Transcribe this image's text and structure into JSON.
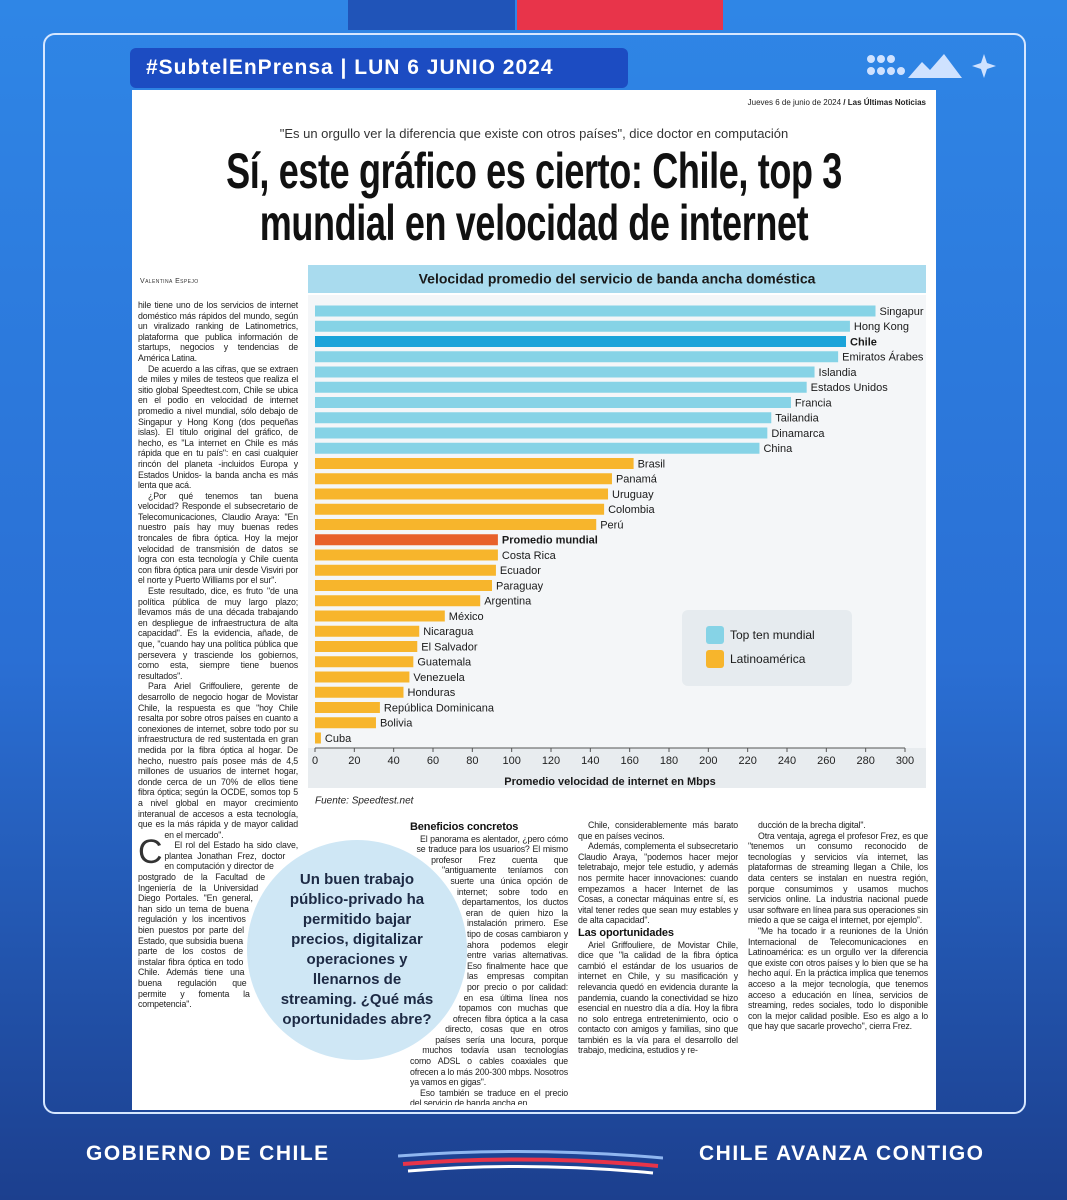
{
  "header": {
    "tag": "#SubtelEnPrensa | LUN 6 JUNIO 2024"
  },
  "newspaper": {
    "dateline": "Jueves 6 de junio de 2024",
    "publication": "/ Las Últimas Noticias",
    "kicker": "\"Es un orgullo ver la diferencia que existe con otros países\", dice doctor en computación",
    "headline": [
      "Sí, este gráfico es cierto: Chile, top 3",
      "mundial en velocidad de internet"
    ],
    "byline": "Valentina Espejo",
    "callout": "Un buen trabajo público-privado ha permitido bajar precios, digitalizar operaciones y llenarnos de streaming. ¿Qué más oportunidades abre?",
    "columns": [
      [
        {
          "p": "Chile tiene uno de los servicios de internet doméstico más rápidos del mundo, según un viralizado ranking de Latinometrics, plataforma que publica información de startups, negocios y tendencias de América Latina."
        },
        {
          "p": "De acuerdo a las cifras, que se extraen de miles y miles de testeos que realiza el sitio global Speedtest.com, Chile se ubica en el podio en velocidad de internet promedio a nivel mundial, sólo debajo de Singapur y Hong Kong (dos pequeñas islas). El título original del gráfico, de hecho, es \"La internet en Chile es más rápida que en tu país\": en casi cualquier rincón del planeta -incluidos Europa y Estados Unidos- la banda ancha es más lenta que acá."
        },
        {
          "p": "¿Por qué tenemos tan buena velocidad? Responde el subsecretario de Telecomunicaciones, Claudio Araya: \"En nuestro país hay muy buenas redes troncales de fibra óptica. Hoy la mejor velocidad de transmisión de datos se logra con esta tecnología y Chile cuenta con fibra óptica para unir desde Visviri por el norte y Puerto Williams por el sur\"."
        },
        {
          "p": "Este resultado, dice, es fruto \"de una política pública de muy largo plazo; llevamos más de una década trabajando en despliegue de infraestructura de alta capacidad\". Es la evidencia, añade, de que, \"cuando hay una política pública que persevera y trasciende los gobiernos, como esta, siempre tiene buenos resultados\"."
        },
        {
          "p": "Para Ariel Griffouliere, gerente de desarrollo de negocio hogar de Movistar Chile, la respuesta es que \"hoy Chile resalta por sobre otros países en cuanto a conexiones de internet, sobre todo por su infraestructura de red sustentada en gran medida por la fibra óptica al hogar. De hecho, nuestro país posee más de 4,5 millones de usuarios de internet hogar, donde cerca de un 70% de ellos tiene fibra óptica; según la OCDE, somos top 5 a nivel global en mayor crecimiento interanual de accesos a esta tecnología, que es la más rápida y de mayor calidad en el mercado\"."
        },
        {
          "p": "El rol del Estado ha sido clave, plantea Jonathan Frez, doctor en computación y director de postgrado de la Facultad de Ingeniería de la Universidad Diego Portales. \"En general, han sido un tema de buena regulación y los incentivos bien puestos por parte del Estado, que subsidia buena parte de los costos de instalar fibra óptica en todo Chile. Además tiene una buena regulación que permite y fomenta la competencia\"."
        }
      ],
      [
        {
          "h": "Beneficios concretos"
        },
        {
          "p": "El panorama es alentador, ¿pero cómo se traduce para los usuarios? El mismo profesor Frez cuenta que \"antiguamente teníamos con suerte una única opción de internet; sobre todo en departamentos, los ductos eran de quien hizo la instalación primero. Ese tipo de cosas cambiaron y ahora podemos elegir entre varias alternativas. Eso finalmente hace que las empresas compitan por precio o por calidad: en esa última línea nos topamos con muchas que ofrecen fibra óptica a la casa directo, cosas que en otros países sería una locura, porque muchos todavía usan tecnologías como ADSL o cables coaxiales que ofrecen a lo más 200-300 mbps. Nosotros ya vamos en gigas\"."
        },
        {
          "p": "Eso también se traduce en el precio del servicio de banda ancha en"
        }
      ],
      [
        {
          "p": "Chile, considerablemente más barato que en países vecinos."
        },
        {
          "p": "Además, complementa el subsecretario Claudio Araya, \"podemos hacer mejor teletrabajo, mejor tele estudio, y además nos permite hacer innovaciones: cuando empezamos a hacer Internet de las Cosas, a conectar máquinas entre sí, es vital tener redes que sean muy estables y de alta capacidad\"."
        },
        {
          "h": "Las oportunidades"
        },
        {
          "p": "Ariel Griffouliere, de Movistar Chile, dice que \"la calidad de la fibra óptica cambió el estándar de los usuarios de internet en Chile, y su masificación y relevancia quedó en evidencia durante la pandemia, cuando la conectividad se hizo esencial en nuestro día a día. Hoy la fibra no solo entrega entretenimiento, ocio o contacto con amigos y familias, sino que también es la vía para el desarrollo del trabajo, medicina, estudios y re-"
        }
      ],
      [
        {
          "p": "ducción de la brecha digital\"."
        },
        {
          "p": "Otra ventaja, agrega el profesor Frez, es que \"tenemos un consumo reconocido de tecnologías y servicios vía internet, las plataformas de streaming llegan a Chile, los data centers se instalan en nuestra región, porque consumimos y usamos muchos servicios online. La industria nacional puede usar software en línea para sus operaciones sin miedo a que se caiga el internet, por ejemplo\"."
        },
        {
          "p": "\"Me ha tocado ir a reuniones de la Unión Internacional de Telecomunicaciones en Latinoamérica: es un orgullo ver la diferencia que existe con otros países y lo bien que se ha hecho aquí. En la práctica implica que tenemos acceso a la mejor tecnología, que tenemos acceso a educación en línea, servicios de streaming, redes sociales, todo lo disponible con la mejor calidad posible. Eso es algo a lo que hay que sacarle provecho\", cierra Frez."
        }
      ]
    ]
  },
  "chart_data": {
    "type": "bar",
    "orientation": "horizontal",
    "title": "Velocidad promedio del servicio de banda ancha doméstica",
    "xlabel": "Promedio velocidad de internet en Mbps",
    "source": "Fuente: Speedtest.net",
    "categories": [
      "Singapur",
      "Hong Kong",
      "Chile",
      "Emiratos Árabes U.",
      "Islandia",
      "Estados Unidos",
      "Francia",
      "Tailandia",
      "Dinamarca",
      "China",
      "Brasil",
      "Panamá",
      "Uruguay",
      "Colombia",
      "Perú",
      "Promedio mundial",
      "Costa Rica",
      "Ecuador",
      "Paraguay",
      "Argentina",
      "México",
      "Nicaragua",
      "El Salvador",
      "Guatemala",
      "Venezuela",
      "Honduras",
      "República Dominicana",
      "Bolivia",
      "Cuba"
    ],
    "values": [
      285,
      272,
      270,
      266,
      254,
      250,
      242,
      232,
      230,
      226,
      162,
      151,
      149,
      147,
      143,
      93,
      93,
      92,
      90,
      84,
      66,
      53,
      52,
      50,
      48,
      45,
      33,
      31,
      3
    ],
    "bar_colors": [
      "#86d3e6",
      "#86d3e6",
      "#1aa3d9",
      "#86d3e6",
      "#86d3e6",
      "#86d3e6",
      "#86d3e6",
      "#86d3e6",
      "#86d3e6",
      "#86d3e6",
      "#f7b52c",
      "#f7b52c",
      "#f7b52c",
      "#f7b52c",
      "#f7b52c",
      "#e8602a",
      "#f7b52c",
      "#f7b52c",
      "#f7b52c",
      "#f7b52c",
      "#f7b52c",
      "#f7b52c",
      "#f7b52c",
      "#f7b52c",
      "#f7b52c",
      "#f7b52c",
      "#f7b52c",
      "#f7b52c",
      "#f7b52c"
    ],
    "bold_indices": [
      2,
      15
    ],
    "legend": [
      {
        "name": "Top ten mundial",
        "color": "#86d3e6"
      },
      {
        "name": "Latinoamérica",
        "color": "#f7b52c"
      }
    ],
    "xlim": [
      0,
      300
    ],
    "xticks": [
      0,
      20,
      40,
      60,
      80,
      100,
      120,
      140,
      160,
      180,
      200,
      220,
      240,
      260,
      280,
      300
    ],
    "grid": false
  },
  "footer": {
    "left": "GOBIERNO DE CHILE",
    "right": "CHILE AVANZA CONTIGO"
  }
}
